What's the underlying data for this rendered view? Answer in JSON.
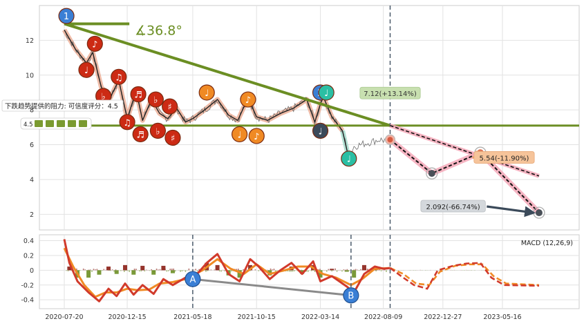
{
  "chart_data": {
    "type": "line",
    "x_ticks": [
      "2020-07-20",
      "2020-12-15",
      "2021-05-18",
      "2021-10-15",
      "2022-03-14",
      "2022-08-09",
      "2022-12-27",
      "2023-05-16"
    ],
    "price_panel": {
      "ylim": [
        1.1,
        14.0
      ],
      "yticks": [
        2,
        4,
        6,
        8,
        10,
        12
      ],
      "grid": true,
      "price_series": [
        {
          "date": "2020-07-20",
          "value": 12.6
        },
        {
          "date": "2020-08-15",
          "value": 11.5
        },
        {
          "date": "2020-09-10",
          "value": 10.7
        },
        {
          "date": "2020-09-25",
          "value": 11.3
        },
        {
          "date": "2020-10-15",
          "value": 9.3
        },
        {
          "date": "2020-11-05",
          "value": 8.7
        },
        {
          "date": "2020-11-25",
          "value": 9.7
        },
        {
          "date": "2020-12-15",
          "value": 7.5
        },
        {
          "date": "2021-01-05",
          "value": 9.1
        },
        {
          "date": "2021-01-20",
          "value": 7.4
        },
        {
          "date": "2021-02-10",
          "value": 8.6
        },
        {
          "date": "2021-03-01",
          "value": 7.8
        },
        {
          "date": "2021-03-20",
          "value": 7.5
        },
        {
          "date": "2021-04-10",
          "value": 8.1
        },
        {
          "date": "2021-05-01",
          "value": 7.3
        },
        {
          "date": "2021-05-18",
          "value": 7.5
        },
        {
          "date": "2021-06-15",
          "value": 8.0
        },
        {
          "date": "2021-07-15",
          "value": 8.6
        },
        {
          "date": "2021-08-10",
          "value": 7.7
        },
        {
          "date": "2021-09-01",
          "value": 7.4
        },
        {
          "date": "2021-09-25",
          "value": 8.7
        },
        {
          "date": "2021-10-15",
          "value": 7.6
        },
        {
          "date": "2021-11-10",
          "value": 7.4
        },
        {
          "date": "2021-12-10",
          "value": 7.8
        },
        {
          "date": "2022-01-10",
          "value": 8.1
        },
        {
          "date": "2022-02-10",
          "value": 8.6
        },
        {
          "date": "2022-03-01",
          "value": 7.3
        },
        {
          "date": "2022-03-20",
          "value": 8.8
        },
        {
          "date": "2022-04-10",
          "value": 7.6
        },
        {
          "date": "2022-05-05",
          "value": 6.8
        },
        {
          "date": "2022-05-20",
          "value": 5.2
        },
        {
          "date": "2022-06-01",
          "value": 5.9
        },
        {
          "date": "2022-07-01",
          "value": 6.1
        },
        {
          "date": "2022-08-01",
          "value": 6.3
        },
        {
          "date": "2022-08-09",
          "value": 6.25
        },
        {
          "date": "2022-08-25",
          "value": 6.29
        }
      ],
      "resistance_line": {
        "start": {
          "date": "2020-07-20",
          "value": 12.95
        },
        "end": {
          "date": "2022-08-25",
          "value": 7.1
        }
      },
      "support_line": {
        "value": 7.1
      },
      "top_segment": {
        "start": {
          "date": "2020-07-20",
          "value": 12.95
        },
        "end": {
          "date": "2020-12-20",
          "value": 12.95
        }
      },
      "angle_label": "∡36.8°",
      "vertical_marker": "2022-08-25",
      "resistance_note": {
        "text": "下跌趋势提供的阻力: 可信度评分：4.5",
        "rating_prefix": "4.5"
      },
      "wave_markers": [
        {
          "date": "2020-07-25",
          "value": 13.4,
          "symbol": "1",
          "color": "#3a7fd5"
        },
        {
          "date": "2020-09-10",
          "value": 10.3,
          "symbol": "♩",
          "color": "#cc2a14"
        },
        {
          "date": "2020-09-30",
          "value": 11.8,
          "symbol": "♪",
          "color": "#cc2a14"
        },
        {
          "date": "2020-10-20",
          "value": 8.8,
          "symbol": "♭",
          "color": "#cc2a14"
        },
        {
          "date": "2020-11-25",
          "value": 9.9,
          "symbol": "♫",
          "color": "#cc2a14"
        },
        {
          "date": "2020-12-15",
          "value": 7.3,
          "symbol": "♫",
          "color": "#cc2a14"
        },
        {
          "date": "2021-01-10",
          "value": 8.9,
          "symbol": "♬",
          "color": "#cc2a14"
        },
        {
          "date": "2021-01-15",
          "value": 6.6,
          "symbol": "♬",
          "color": "#cc2a14"
        },
        {
          "date": "2021-02-20",
          "value": 8.6,
          "symbol": "♭",
          "color": "#cc2a14"
        },
        {
          "date": "2021-02-25",
          "value": 6.8,
          "symbol": "♭",
          "color": "#cc2a14"
        },
        {
          "date": "2021-03-25",
          "value": 8.2,
          "symbol": "♯",
          "color": "#cc2a14"
        },
        {
          "date": "2021-04-01",
          "value": 6.4,
          "symbol": "♯",
          "color": "#cc2a14"
        },
        {
          "date": "2021-06-20",
          "value": 9.0,
          "symbol": "♩",
          "color": "#f08a24"
        },
        {
          "date": "2021-09-05",
          "value": 6.6,
          "symbol": "♩",
          "color": "#f08a24"
        },
        {
          "date": "2021-09-25",
          "value": 8.6,
          "symbol": "♪",
          "color": "#f08a24"
        },
        {
          "date": "2021-10-15",
          "value": 6.5,
          "symbol": "♪",
          "color": "#f08a24"
        },
        {
          "date": "2022-03-14",
          "value": 6.8,
          "symbol": "♩",
          "color": "#3b4a5a"
        },
        {
          "date": "2022-03-14",
          "value": 9.0,
          "symbol": "2",
          "color": "#3a7fd5"
        },
        {
          "date": "2022-03-28",
          "value": 9.0,
          "symbol": "♩",
          "color": "#2bbfa4"
        },
        {
          "date": "2022-05-20",
          "value": 5.2,
          "symbol": "♩",
          "color": "#2bbfa4"
        }
      ],
      "projection": {
        "start": {
          "date": "2022-08-25",
          "value": 6.29
        },
        "points": [
          {
            "date": "2022-12-01",
            "value": 4.35
          },
          {
            "date": "2023-03-25",
            "value": 5.54
          },
          {
            "date": "2023-08-10",
            "value": 2.09
          }
        ],
        "upper_channel": {
          "start": {
            "date": "2022-08-25",
            "value": 7.1
          },
          "end": {
            "date": "2023-08-10",
            "value": 4.2
          }
        }
      },
      "annotations": [
        {
          "text": "7.12(+13.14%)",
          "date": "2022-08-25",
          "value": 8.95,
          "style": "green"
        },
        {
          "text": "5.54(-11.90%)",
          "date": "2023-05-20",
          "value": 5.25,
          "style": "orange",
          "arrow_to": {
            "date": "2023-03-25",
            "value": 5.54
          }
        },
        {
          "text": "2.092(-66.74%)",
          "date": "2023-01-20",
          "value": 2.45,
          "style": "gray",
          "arrow_to": {
            "date": "2023-08-10",
            "value": 2.09
          }
        }
      ]
    },
    "macd_panel": {
      "label": "MACD (12,26,9)",
      "ylim": [
        -0.52,
        0.48
      ],
      "yticks": [
        -0.4,
        -0.2,
        0.0,
        0.2,
        0.4
      ],
      "macd_line": [
        {
          "date": "2020-07-20",
          "value": 0.42
        },
        {
          "date": "2020-08-01",
          "value": 0.1
        },
        {
          "date": "2020-08-20",
          "value": -0.15
        },
        {
          "date": "2020-09-15",
          "value": -0.3
        },
        {
          "date": "2020-10-10",
          "value": -0.42
        },
        {
          "date": "2020-11-01",
          "value": -0.25
        },
        {
          "date": "2020-11-20",
          "value": -0.35
        },
        {
          "date": "2020-12-10",
          "value": -0.18
        },
        {
          "date": "2020-12-30",
          "value": -0.33
        },
        {
          "date": "2021-01-20",
          "value": -0.2
        },
        {
          "date": "2021-02-15",
          "value": -0.32
        },
        {
          "date": "2021-03-10",
          "value": -0.12
        },
        {
          "date": "2021-04-01",
          "value": -0.2
        },
        {
          "date": "2021-05-01",
          "value": -0.1
        },
        {
          "date": "2021-05-18",
          "value": -0.12
        },
        {
          "date": "2021-06-20",
          "value": 0.1
        },
        {
          "date": "2021-07-15",
          "value": 0.22
        },
        {
          "date": "2021-08-10",
          "value": -0.05
        },
        {
          "date": "2021-09-05",
          "value": -0.15
        },
        {
          "date": "2021-09-30",
          "value": 0.15
        },
        {
          "date": "2021-10-20",
          "value": 0.05
        },
        {
          "date": "2021-11-15",
          "value": -0.12
        },
        {
          "date": "2021-12-10",
          "value": 0.0
        },
        {
          "date": "2022-01-05",
          "value": 0.1
        },
        {
          "date": "2022-01-30",
          "value": -0.05
        },
        {
          "date": "2022-02-25",
          "value": 0.12
        },
        {
          "date": "2022-03-14",
          "value": -0.15
        },
        {
          "date": "2022-04-10",
          "value": -0.08
        },
        {
          "date": "2022-05-15",
          "value": -0.22
        },
        {
          "date": "2022-06-01",
          "value": -0.3
        },
        {
          "date": "2022-06-25",
          "value": -0.05
        },
        {
          "date": "2022-07-20",
          "value": 0.05
        },
        {
          "date": "2022-08-10",
          "value": 0.02
        },
        {
          "date": "2022-08-25",
          "value": 0.03
        }
      ],
      "signal_line": [
        {
          "date": "2020-07-20",
          "value": 0.3
        },
        {
          "date": "2020-08-10",
          "value": 0.05
        },
        {
          "date": "2020-09-05",
          "value": -0.2
        },
        {
          "date": "2020-10-01",
          "value": -0.36
        },
        {
          "date": "2020-10-25",
          "value": -0.3
        },
        {
          "date": "2020-11-20",
          "value": -0.3
        },
        {
          "date": "2020-12-15",
          "value": -0.25
        },
        {
          "date": "2021-01-10",
          "value": -0.27
        },
        {
          "date": "2021-02-05",
          "value": -0.26
        },
        {
          "date": "2021-03-01",
          "value": -0.18
        },
        {
          "date": "2021-04-01",
          "value": -0.16
        },
        {
          "date": "2021-05-01",
          "value": -0.12
        },
        {
          "date": "2021-06-10",
          "value": 0.0
        },
        {
          "date": "2021-07-15",
          "value": 0.15
        },
        {
          "date": "2021-08-15",
          "value": 0.02
        },
        {
          "date": "2021-09-15",
          "value": -0.05
        },
        {
          "date": "2021-10-15",
          "value": 0.08
        },
        {
          "date": "2021-11-15",
          "value": -0.05
        },
        {
          "date": "2021-12-20",
          "value": 0.0
        },
        {
          "date": "2022-01-20",
          "value": 0.05
        },
        {
          "date": "2022-02-20",
          "value": 0.05
        },
        {
          "date": "2022-03-20",
          "value": -0.05
        },
        {
          "date": "2022-04-20",
          "value": -0.1
        },
        {
          "date": "2022-05-25",
          "value": -0.2
        },
        {
          "date": "2022-06-20",
          "value": -0.12
        },
        {
          "date": "2022-07-20",
          "value": 0.02
        },
        {
          "date": "2022-08-25",
          "value": 0.03
        }
      ],
      "histogram": [
        {
          "date": "2020-08-01",
          "value": 0.05
        },
        {
          "date": "2020-08-20",
          "value": -0.1
        },
        {
          "date": "2020-09-15",
          "value": -0.1
        },
        {
          "date": "2020-10-10",
          "value": -0.06
        },
        {
          "date": "2020-11-01",
          "value": 0.05
        },
        {
          "date": "2020-11-20",
          "value": -0.05
        },
        {
          "date": "2020-12-10",
          "value": 0.07
        },
        {
          "date": "2020-12-30",
          "value": -0.06
        },
        {
          "date": "2021-01-20",
          "value": 0.06
        },
        {
          "date": "2021-02-15",
          "value": -0.06
        },
        {
          "date": "2021-03-10",
          "value": 0.06
        },
        {
          "date": "2021-04-01",
          "value": -0.04
        },
        {
          "date": "2021-06-20",
          "value": 0.1
        },
        {
          "date": "2021-07-15",
          "value": 0.07
        },
        {
          "date": "2021-08-10",
          "value": -0.07
        },
        {
          "date": "2021-09-05",
          "value": -0.1
        },
        {
          "date": "2021-09-30",
          "value": 0.07
        },
        {
          "date": "2021-11-15",
          "value": -0.07
        },
        {
          "date": "2022-01-05",
          "value": 0.05
        },
        {
          "date": "2022-01-30",
          "value": -0.05
        },
        {
          "date": "2022-02-25",
          "value": 0.07
        },
        {
          "date": "2022-03-14",
          "value": -0.1
        },
        {
          "date": "2022-04-10",
          "value": 0.02
        },
        {
          "date": "2022-05-15",
          "value": -0.02
        },
        {
          "date": "2022-06-01",
          "value": -0.1
        },
        {
          "date": "2022-06-25",
          "value": 0.07
        },
        {
          "date": "2022-07-20",
          "value": 0.03
        }
      ],
      "projection_line": [
        {
          "date": "2022-08-25",
          "value": 0.03
        },
        {
          "date": "2022-09-20",
          "value": -0.08
        },
        {
          "date": "2022-10-20",
          "value": -0.2
        },
        {
          "date": "2022-11-20",
          "value": -0.25
        },
        {
          "date": "2022-12-15",
          "value": 0.0
        },
        {
          "date": "2023-01-20",
          "value": 0.06
        },
        {
          "date": "2023-02-20",
          "value": 0.09
        },
        {
          "date": "2023-03-25",
          "value": 0.1
        },
        {
          "date": "2023-04-20",
          "value": -0.1
        },
        {
          "date": "2023-05-20",
          "value": -0.2
        },
        {
          "date": "2023-08-10",
          "value": -0.21
        }
      ],
      "projection_signal": [
        {
          "date": "2022-08-25",
          "value": 0.03
        },
        {
          "date": "2022-09-25",
          "value": -0.05
        },
        {
          "date": "2022-10-25",
          "value": -0.18
        },
        {
          "date": "2022-11-25",
          "value": -0.2
        },
        {
          "date": "2022-12-20",
          "value": -0.02
        },
        {
          "date": "2023-01-25",
          "value": 0.06
        },
        {
          "date": "2023-03-01",
          "value": 0.08
        },
        {
          "date": "2023-03-30",
          "value": 0.08
        },
        {
          "date": "2023-04-25",
          "value": -0.08
        },
        {
          "date": "2023-05-25",
          "value": -0.18
        },
        {
          "date": "2023-08-10",
          "value": -0.2
        }
      ],
      "divergence": {
        "start": {
          "date": "2021-05-18",
          "value": -0.12,
          "label": "A"
        },
        "end": {
          "date": "2022-05-25",
          "value": -0.34,
          "label": "B"
        }
      },
      "vertical_markers": [
        "2021-05-18",
        "2022-05-25",
        "2022-08-25"
      ]
    },
    "colors": {
      "price": "#6b6b6b",
      "trend_green": "#6b8e23",
      "pink": "#f4a8b8",
      "salmon": "#e8a48a",
      "macd": "#d13a2b",
      "signal": "#f08a24",
      "hist_pos": "#8b1f16",
      "hist_neg": "#6b8e23",
      "vline": "#4a5a6a",
      "divergence": "#8a8a8a",
      "marker_blue": "#3a7fd5"
    }
  }
}
